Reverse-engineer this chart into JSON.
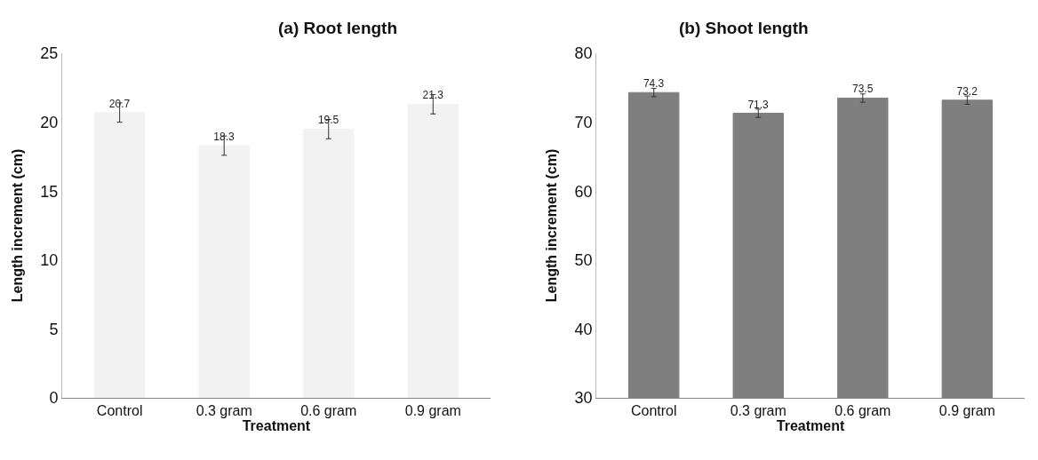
{
  "chart_data": [
    {
      "type": "bar",
      "title": "(a) Root length",
      "xlabel": "Treatment",
      "ylabel": "Length increment (cm)",
      "categories": [
        "Control",
        "0.3 gram",
        "0.6 gram",
        "0.9 gram"
      ],
      "values": [
        20.7,
        18.3,
        19.5,
        21.3
      ],
      "errors": [
        0.7,
        0.7,
        0.7,
        0.7
      ],
      "color": "#f2f2f2",
      "ylim": [
        0,
        25
      ],
      "yticks": [
        0,
        5,
        10,
        15,
        20,
        25
      ],
      "data_labels": true
    },
    {
      "type": "bar",
      "title": "(b) Shoot length",
      "xlabel": "Treatment",
      "ylabel": "Length increment (cm)",
      "categories": [
        "Control",
        "0.3 gram",
        "0.6 gram",
        "0.9 gram"
      ],
      "values": [
        74.3,
        71.3,
        73.5,
        73.2
      ],
      "errors": [
        0.6,
        0.6,
        0.6,
        0.6
      ],
      "color": "#7f7f7f",
      "ylim": [
        30,
        80
      ],
      "yticks": [
        30,
        40,
        50,
        60,
        70,
        80
      ],
      "data_labels": true
    }
  ]
}
